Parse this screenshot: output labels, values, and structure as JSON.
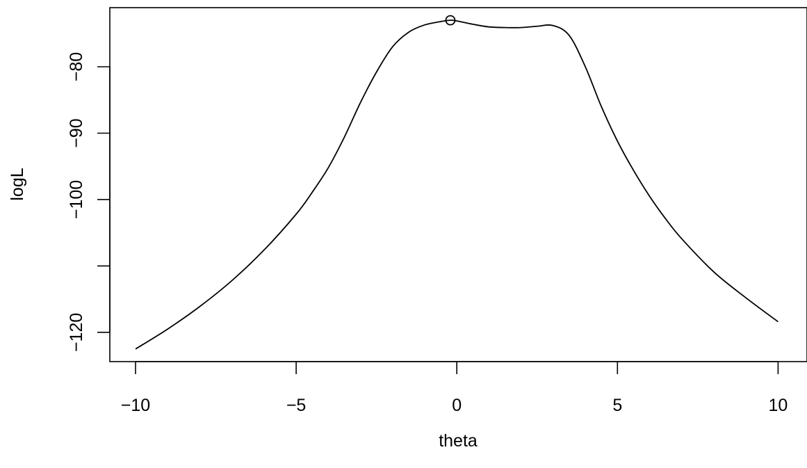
{
  "chart_data": {
    "type": "line",
    "title": "",
    "xlabel": "theta",
    "ylabel": "logL",
    "xlim": [
      -10.8,
      10.9
    ],
    "ylim": [
      -124.4,
      -71.1
    ],
    "x_ticks": [
      -10,
      -5,
      0,
      5,
      10
    ],
    "x_tick_labels": [
      "−10",
      "−5",
      "0",
      "5",
      "10"
    ],
    "y_ticks": [
      -120,
      -110,
      -100,
      -90,
      -80
    ],
    "y_tick_labels": [
      "−120",
      "",
      "−100",
      "−90",
      "−80"
    ],
    "grid": false,
    "legend": "none",
    "line_color": "#000000",
    "series": [
      {
        "x": [
          -10,
          -9,
          -8,
          -7,
          -6,
          -5,
          -4.5,
          -4,
          -3.5,
          -3,
          -2.5,
          -2,
          -1.5,
          -1,
          -0.5,
          -0.2,
          0,
          0.5,
          1,
          1.5,
          2,
          2.5,
          3,
          3.5,
          4,
          4.5,
          5,
          5.5,
          6,
          6.5,
          7,
          8,
          9,
          10
        ],
        "y": [
          -122.5,
          -119.5,
          -116.1,
          -112.2,
          -107.6,
          -102.2,
          -98.9,
          -95.2,
          -90.6,
          -85.4,
          -80.8,
          -77.0,
          -74.8,
          -73.7,
          -73.2,
          -73.0,
          -73.1,
          -73.6,
          -74.0,
          -74.1,
          -74.1,
          -73.9,
          -73.8,
          -75.3,
          -80.0,
          -86.0,
          -91.2,
          -95.6,
          -99.5,
          -102.9,
          -105.9,
          -110.9,
          -114.8,
          -118.4
        ]
      }
    ],
    "max_point": {
      "x": -0.2,
      "y": -73.0
    }
  }
}
